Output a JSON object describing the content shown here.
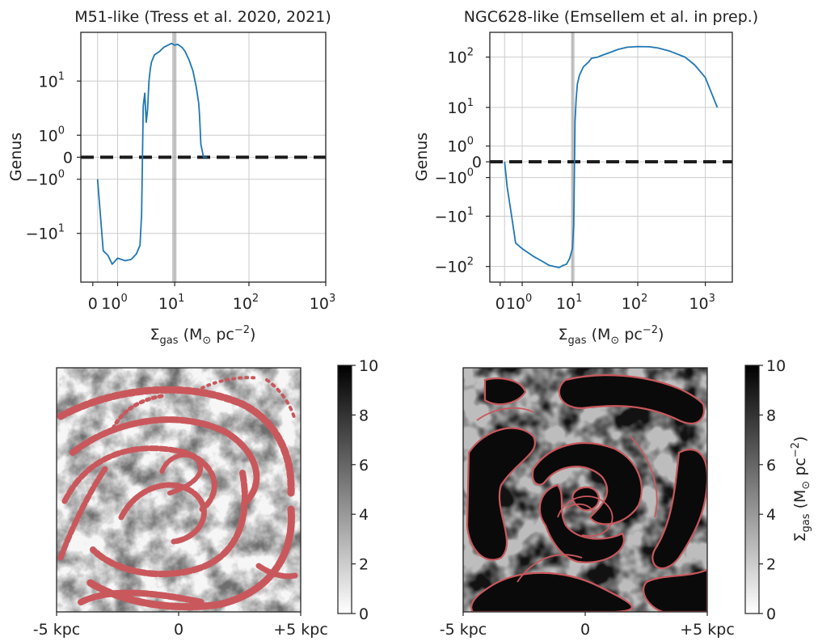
{
  "colors": {
    "line": "#1f77b4",
    "zero_line": "#1a1a1a",
    "grid": "#cccccc",
    "vband": "#9a9a9a",
    "contour": "#c9585c"
  },
  "chart_data": [
    {
      "type": "line",
      "title": "M51-like (Tress et al. 2020, 2021)",
      "xlabel_main": "Σ",
      "xlabel_sub": "gas",
      "xlabel_rest": " (M",
      "xlabel_sun": "⊙",
      "xlabel_unit": " pc",
      "xlabel_exp": "−2",
      "xlabel_close": ")",
      "ylabel": "Genus",
      "xscale": "symlog",
      "yscale": "symlog",
      "xlim": [
        -0.5,
        1000
      ],
      "ylim": [
        -50,
        50
      ],
      "xtick_labels": [
        {
          "base": "0",
          "exp": ""
        },
        {
          "base": "10",
          "exp": "0"
        },
        {
          "base": "10",
          "exp": "1"
        },
        {
          "base": "10",
          "exp": "2"
        },
        {
          "base": "10",
          "exp": "3"
        }
      ],
      "ytick_labels": [
        {
          "base": "10",
          "exp": "1"
        },
        {
          "base": "10",
          "exp": "0"
        },
        {
          "base": "0",
          "exp": ""
        },
        {
          "base": "−10",
          "exp": "0"
        },
        {
          "base": "−10",
          "exp": "1"
        }
      ],
      "vband": [
        9.2,
        10.6
      ],
      "zero_line": 0,
      "series": [
        {
          "x": [
            0.1,
            0.3,
            0.5,
            0.7,
            1.0,
            1.5,
            2.0,
            2.5,
            2.9,
            3.1,
            3.3,
            3.5,
            3.7,
            3.9,
            4.1,
            4.3,
            4.5,
            5,
            6,
            7,
            8,
            9,
            10,
            11,
            12,
            13,
            14,
            16,
            18,
            20,
            21.5,
            22,
            22.5,
            23,
            25,
            28
          ],
          "y": [
            -1,
            -18,
            -21,
            -28,
            -23,
            -25,
            -24,
            -20,
            -15,
            -5,
            4,
            6.5,
            2,
            3.5,
            10,
            15,
            19,
            24,
            27,
            31,
            33,
            35,
            33,
            34,
            32,
            30,
            27,
            20,
            14,
            8,
            4.5,
            3,
            1.5,
            0.5,
            0,
            0
          ]
        }
      ]
    },
    {
      "type": "line",
      "title": "NGC628-like (Emsellem et al. in prep.)",
      "xlabel_main": "Σ",
      "xlabel_sub": "gas",
      "xlabel_rest": " (M",
      "xlabel_sun": "⊙",
      "xlabel_unit": " pc",
      "xlabel_exp": "−2",
      "xlabel_close": ")",
      "ylabel": "Genus",
      "xscale": "symlog",
      "yscale": "symlog",
      "xlim": [
        -0.5,
        2500
      ],
      "ylim": [
        -200,
        300
      ],
      "xtick_labels": [
        {
          "base": "0",
          "exp": ""
        },
        {
          "base": "10",
          "exp": "0"
        },
        {
          "base": "10",
          "exp": "1"
        },
        {
          "base": "10",
          "exp": "2"
        },
        {
          "base": "10",
          "exp": "3"
        }
      ],
      "ytick_labels": [
        {
          "base": "10",
          "exp": "2"
        },
        {
          "base": "10",
          "exp": "1"
        },
        {
          "base": "10",
          "exp": "0"
        },
        {
          "base": "0",
          "exp": ""
        },
        {
          "base": "−10",
          "exp": "0"
        },
        {
          "base": "−10",
          "exp": "1"
        },
        {
          "base": "−10",
          "exp": "2"
        }
      ],
      "vband": [
        9.5,
        10.8
      ],
      "zero_line": 0,
      "series": [
        {
          "x": [
            0.1,
            0.2,
            0.4,
            0.6,
            1,
            2,
            3,
            4,
            5,
            6,
            7,
            8,
            9,
            10,
            10.5,
            11,
            11.5,
            12,
            13,
            15,
            18,
            20,
            25,
            30,
            40,
            50,
            70,
            100,
            150,
            200,
            300,
            500,
            700,
            1000,
            1500
          ],
          "y": [
            0,
            -2,
            -10,
            -35,
            -45,
            -65,
            -80,
            -95,
            -100,
            -105,
            -95,
            -90,
            -70,
            -45,
            -15,
            5,
            15,
            30,
            45,
            65,
            80,
            95,
            100,
            110,
            125,
            140,
            155,
            160,
            158,
            150,
            130,
            100,
            70,
            40,
            10
          ]
        }
      ]
    },
    {
      "type": "heatmap",
      "xtick_labels": [
        "-5 kpc",
        "0",
        "+5 kpc"
      ],
      "colorbar_ticks": [
        "0",
        "2",
        "4",
        "6",
        "8",
        "10"
      ],
      "colorbar_range": [
        0,
        10
      ],
      "colormap": "gray_r",
      "contour_color": "#c9585c"
    },
    {
      "type": "heatmap",
      "xtick_labels": [
        "-5 kpc",
        "0",
        "+5 kpc"
      ],
      "colorbar_ticks": [
        "0",
        "2",
        "4",
        "6",
        "8",
        "10"
      ],
      "colorbar_range": [
        0,
        10
      ],
      "colormap": "gray_r",
      "contour_color": "#c9585c",
      "colorbar_label_main": "Σ",
      "colorbar_label_sub": "gas",
      "colorbar_label_rest": " (M",
      "colorbar_label_sun": "⊙",
      "colorbar_label_unit": " pc",
      "colorbar_label_exp": "−2",
      "colorbar_label_close": ")"
    }
  ]
}
